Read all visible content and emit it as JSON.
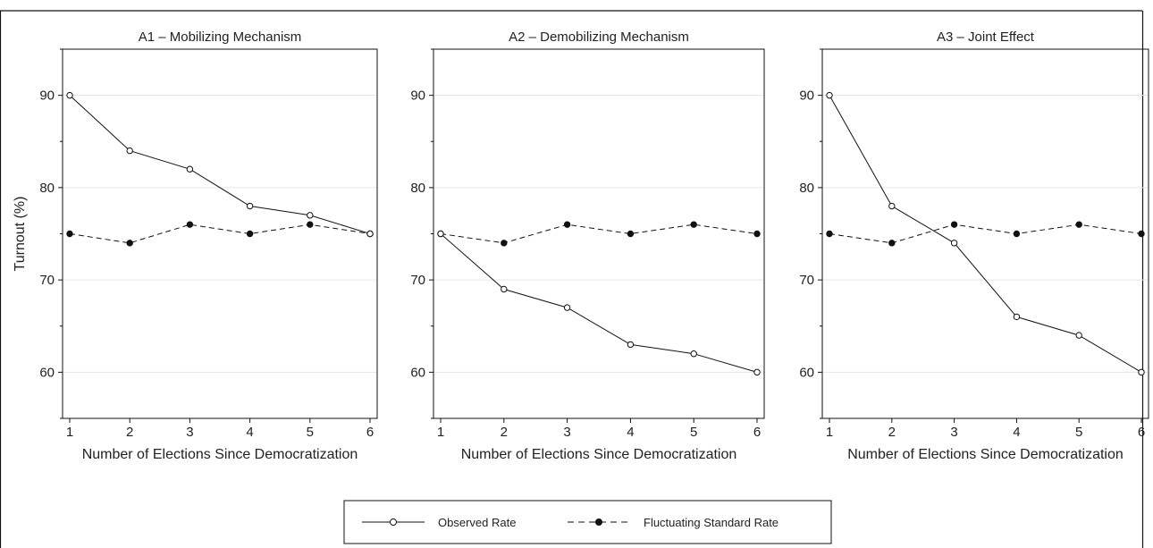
{
  "chart_data": [
    {
      "type": "line",
      "title": "A1 – Mobilizing Mechanism",
      "xlabel": "Number of Elections Since Democratization",
      "ylabel": "Turnout (%)",
      "x": [
        1,
        2,
        3,
        4,
        5,
        6
      ],
      "xticks": [
        1,
        2,
        3,
        4,
        5,
        6
      ],
      "yticks": [
        60,
        70,
        80,
        90
      ],
      "ylim": [
        55,
        95
      ],
      "grid": true,
      "series": [
        {
          "name": "Observed Rate",
          "values": [
            90,
            84,
            82,
            78,
            77,
            75
          ],
          "style": "solid",
          "marker": "hollow-circle"
        },
        {
          "name": "Fluctuating Standard Rate",
          "values": [
            75,
            74,
            76,
            75,
            76,
            75
          ],
          "style": "dashed",
          "marker": "filled-circle"
        }
      ]
    },
    {
      "type": "line",
      "title": "A2 – Demobilizing Mechanism",
      "xlabel": "Number of Elections Since Democratization",
      "ylabel": "",
      "x": [
        1,
        2,
        3,
        4,
        5,
        6
      ],
      "xticks": [
        1,
        2,
        3,
        4,
        5,
        6
      ],
      "yticks": [
        60,
        70,
        80,
        90
      ],
      "ylim": [
        55,
        95
      ],
      "grid": true,
      "series": [
        {
          "name": "Observed Rate",
          "values": [
            75,
            69,
            67,
            63,
            62,
            60
          ],
          "style": "solid",
          "marker": "hollow-circle"
        },
        {
          "name": "Fluctuating Standard Rate",
          "values": [
            75,
            74,
            76,
            75,
            76,
            75
          ],
          "style": "dashed",
          "marker": "filled-circle"
        }
      ]
    },
    {
      "type": "line",
      "title": "A3 – Joint Effect",
      "xlabel": "Number of Elections Since Democratization",
      "ylabel": "",
      "x": [
        1,
        2,
        3,
        4,
        5,
        6
      ],
      "xticks": [
        1,
        2,
        3,
        4,
        5,
        6
      ],
      "yticks": [
        60,
        70,
        80,
        90
      ],
      "ylim": [
        55,
        95
      ],
      "grid": true,
      "series": [
        {
          "name": "Observed Rate",
          "values": [
            90,
            78,
            74,
            66,
            64,
            60
          ],
          "style": "solid",
          "marker": "hollow-circle"
        },
        {
          "name": "Fluctuating Standard Rate",
          "values": [
            75,
            74,
            76,
            75,
            76,
            75
          ],
          "style": "dashed",
          "marker": "filled-circle"
        }
      ]
    }
  ],
  "legend": {
    "placement": "bottom-center",
    "items": [
      {
        "label": "Observed Rate",
        "style": "solid",
        "marker": "hollow-circle"
      },
      {
        "label": "Fluctuating Standard Rate",
        "style": "dashed",
        "marker": "filled-circle"
      }
    ]
  }
}
